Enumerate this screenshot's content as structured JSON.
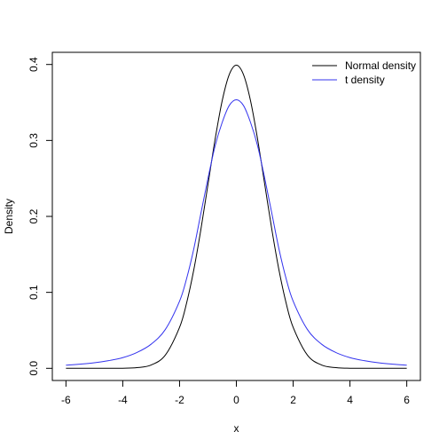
{
  "chart_data": {
    "type": "line",
    "title": "",
    "xlabel": "x",
    "ylabel": "Density",
    "xlim": [
      -6,
      6
    ],
    "ylim": [
      0,
      0.4
    ],
    "x_ticks": [
      -6,
      -4,
      -2,
      0,
      2,
      4,
      6
    ],
    "y_ticks": [
      0.0,
      0.1,
      0.2,
      0.3,
      0.4
    ],
    "x_tick_labels": [
      "-6",
      "-4",
      "-2",
      "0",
      "2",
      "4",
      "6"
    ],
    "y_tick_labels": [
      "0.0",
      "0.1",
      "0.2",
      "0.3",
      "0.4"
    ],
    "grid": false,
    "legend": {
      "position": "top-right"
    },
    "x": [
      -6,
      -5.5,
      -5,
      -4.5,
      -4,
      -3.5,
      -3,
      -2.5,
      -2,
      -1.75,
      -1.5,
      -1.25,
      -1,
      -0.75,
      -0.5,
      -0.25,
      0,
      0.25,
      0.5,
      0.75,
      1,
      1.25,
      1.5,
      1.75,
      2,
      2.5,
      3,
      3.5,
      4,
      4.5,
      5,
      5.5,
      6
    ],
    "series": [
      {
        "name": "Normal density",
        "color": "#000000",
        "values": [
          0.0,
          0.0,
          0.0,
          2e-05,
          0.0001,
          0.0009,
          0.0044,
          0.0175,
          0.054,
          0.0863,
          0.1295,
          0.1826,
          0.242,
          0.3011,
          0.3521,
          0.3867,
          0.399,
          0.3867,
          0.3521,
          0.3011,
          0.242,
          0.1826,
          0.1295,
          0.0863,
          0.054,
          0.0175,
          0.0044,
          0.0009,
          0.0001,
          2e-05,
          0.0,
          0.0,
          0.0
        ]
      },
      {
        "name": "t density",
        "color": "#3333ee",
        "values": [
          0.0042,
          0.0055,
          0.0073,
          0.0101,
          0.0141,
          0.0209,
          0.0318,
          0.0512,
          0.0884,
          0.1184,
          0.1571,
          0.2038,
          0.25,
          0.2926,
          0.3236,
          0.346,
          0.3536,
          0.346,
          0.3236,
          0.2926,
          0.25,
          0.2038,
          0.1571,
          0.1184,
          0.0884,
          0.0512,
          0.0318,
          0.0209,
          0.0141,
          0.0101,
          0.0073,
          0.0055,
          0.0042
        ]
      }
    ]
  }
}
